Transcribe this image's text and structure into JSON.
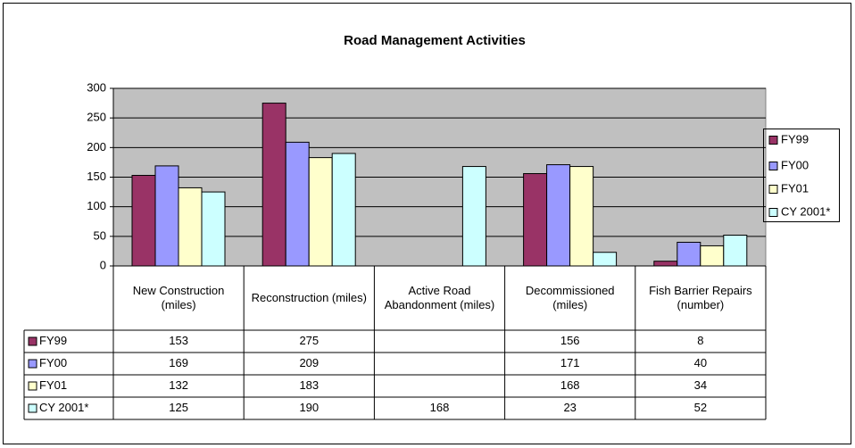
{
  "chart_data": {
    "type": "bar",
    "title": "Road Management Activities",
    "categories": [
      "New Construction (miles)",
      "Reconstruction (miles)",
      "Active Road Abandonment (miles)",
      "Decommissioned (miles)",
      "Fish Barrier Repairs (number)"
    ],
    "series": [
      {
        "name": "FY99",
        "color": "#993366",
        "values": [
          153,
          275,
          null,
          156,
          8
        ]
      },
      {
        "name": "FY00",
        "color": "#9999ff",
        "values": [
          169,
          209,
          null,
          171,
          40
        ]
      },
      {
        "name": "FY01",
        "color": "#ffffcc",
        "values": [
          132,
          183,
          null,
          168,
          34
        ]
      },
      {
        "name": "CY 2001*",
        "color": "#ccffff",
        "values": [
          125,
          190,
          168,
          23,
          52
        ]
      }
    ],
    "ylim": [
      0,
      300
    ],
    "yticks": [
      0,
      50,
      100,
      150,
      200,
      250,
      300
    ],
    "grid": true,
    "legend": "right",
    "plot_background": "#c0c0c0"
  }
}
